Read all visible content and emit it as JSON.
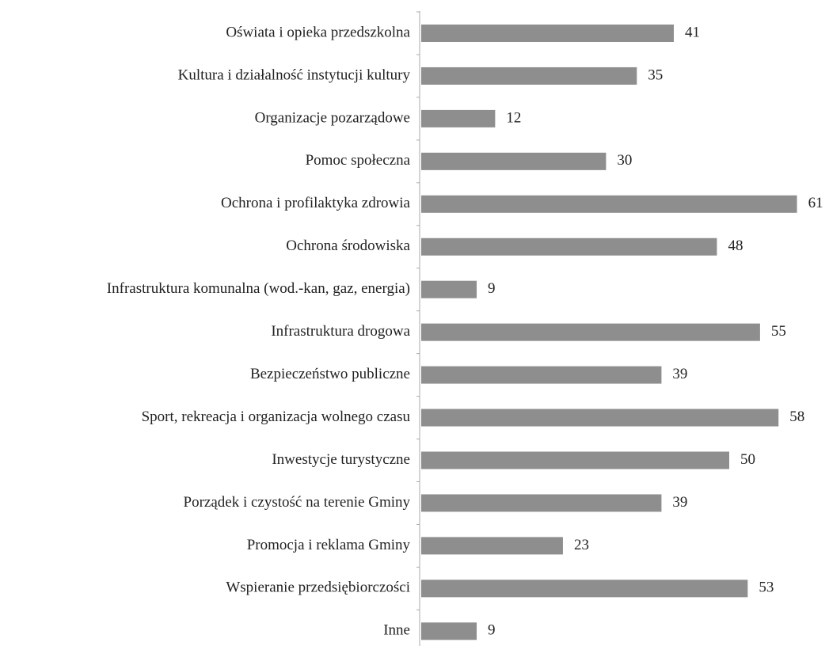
{
  "chart_data": {
    "type": "barh",
    "categories": [
      "Oświata i opieka przedszkolna",
      "Kultura i działalność instytucji kultury",
      "Organizacje pozarządowe",
      "Pomoc społeczna",
      "Ochrona i profilaktyka zdrowia",
      "Ochrona środowiska",
      "Infrastruktura komunalna (wod.-kan, gaz, energia)",
      "Infrastruktura drogowa",
      "Bezpieczeństwo publiczne",
      "Sport, rekreacja i organizacja wolnego czasu",
      "Inwestycje turystyczne",
      "Porządek i czystość na terenie Gminy",
      "Promocja i reklama Gminy",
      "Wspieranie przedsiębiorczości",
      "Inne"
    ],
    "values": [
      41,
      35,
      12,
      30,
      61,
      48,
      9,
      55,
      39,
      58,
      50,
      39,
      23,
      53,
      9
    ],
    "color": "#8e8e8e"
  }
}
